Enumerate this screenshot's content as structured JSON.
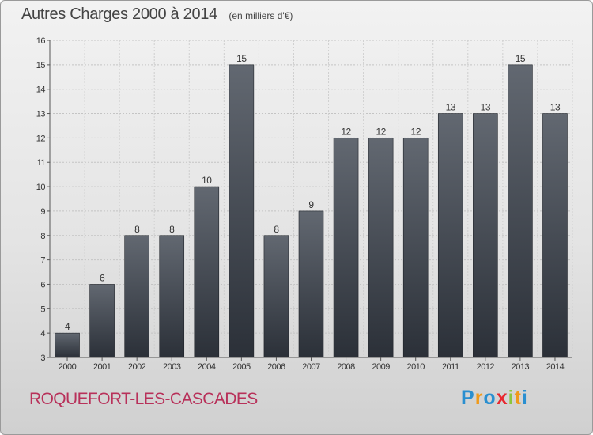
{
  "header": {
    "title": "Autres Charges 2000 à 2014",
    "subtitle": "(en milliers d'€)"
  },
  "footer": {
    "commune": "ROQUEFORT-LES-CASCADES",
    "logo": {
      "text": "Proxiti",
      "letters": [
        {
          "ch": "P",
          "color": "#2a8fd0"
        },
        {
          "ch": "r",
          "color": "#f09a1a"
        },
        {
          "ch": "o",
          "color": "#2a8fd0"
        },
        {
          "ch": "x",
          "color": "#e8272f"
        },
        {
          "ch": "i",
          "color": "#8cc63e"
        },
        {
          "ch": "t",
          "color": "#f09a1a"
        },
        {
          "ch": "i",
          "color": "#2a8fd0"
        }
      ]
    }
  },
  "chart_data": {
    "type": "bar",
    "title": "Autres Charges 2000 à 2014",
    "subtitle": "(en milliers d'€)",
    "categories": [
      "2000",
      "2001",
      "2002",
      "2003",
      "2004",
      "2005",
      "2006",
      "2007",
      "2008",
      "2009",
      "2010",
      "2011",
      "2012",
      "2013",
      "2014"
    ],
    "values": [
      4,
      6,
      8,
      8,
      10,
      15,
      8,
      9,
      12,
      12,
      12,
      13,
      13,
      15,
      13
    ],
    "ylim": [
      3,
      16
    ],
    "yticks": [
      3,
      4,
      5,
      6,
      7,
      8,
      9,
      10,
      11,
      12,
      13,
      14,
      15,
      16
    ],
    "grid": true,
    "bar_color_top": "#626871",
    "bar_color_bottom": "#2b3038"
  }
}
